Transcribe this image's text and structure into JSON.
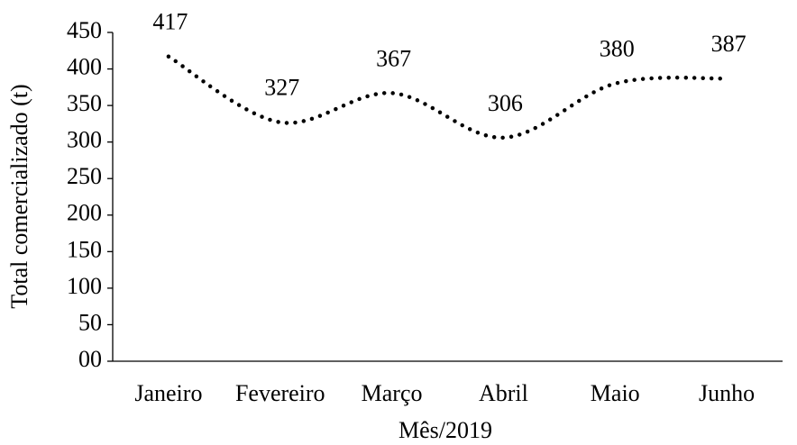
{
  "chart_data": {
    "type": "line",
    "x_label": "Mês/2019",
    "y_label": "Total comercializado (t)",
    "categories": [
      "Janeiro",
      "Fevereiro",
      "Março",
      "Abril",
      "Maio",
      "Junho"
    ],
    "series": [
      {
        "name": null,
        "color": "#000000",
        "values": [
          417,
          327,
          367,
          306,
          380,
          387
        ]
      }
    ],
    "ylim": [
      0,
      450
    ],
    "yticks": [
      {
        "value": 0,
        "label": "00"
      },
      50,
      100,
      150,
      200,
      250,
      300,
      350,
      400,
      450
    ],
    "grid": false,
    "line_style": "dotted",
    "smooth": true
  }
}
